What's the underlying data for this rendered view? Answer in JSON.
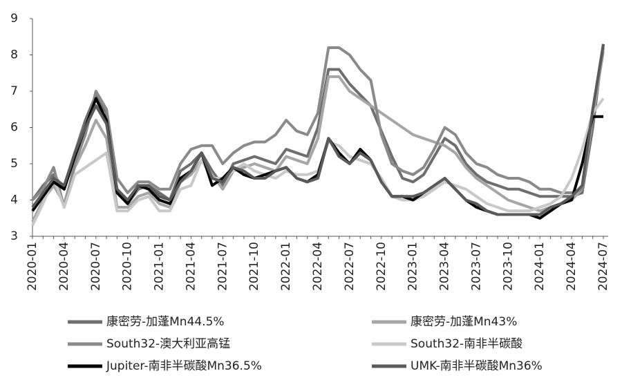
{
  "chart_data": {
    "type": "line",
    "categories": [
      "2020-01",
      null,
      null,
      "2020-04",
      null,
      null,
      "2020-07",
      null,
      null,
      "2020-10",
      null,
      null,
      "2021-01",
      null,
      null,
      "2021-04",
      null,
      null,
      "2021-07",
      null,
      null,
      "2021-10",
      null,
      null,
      "2022-01",
      null,
      null,
      "2022-04",
      null,
      null,
      "2022-07",
      null,
      null,
      "2022-10",
      null,
      null,
      "2023-01",
      null,
      null,
      "2023-04",
      null,
      null,
      "2023-07",
      null,
      null,
      "2023-10",
      null,
      null,
      "2024-01",
      null,
      null,
      "2024-04",
      null,
      null,
      "2024-07"
    ],
    "ylim": [
      3,
      9
    ],
    "yticks": [
      3,
      4,
      5,
      6,
      7,
      8,
      9
    ],
    "grid": false,
    "series": [
      {
        "name": "康密劳-加蓬Mn44.5%",
        "color": "#6e6e6e",
        "values": [
          4.0,
          4.4,
          4.7,
          4.3,
          5.3,
          6.2,
          6.9,
          6.4,
          4.2,
          3.9,
          4.3,
          4.4,
          4.2,
          4.0,
          4.8,
          5.0,
          5.3,
          4.8,
          4.4,
          5.0,
          5.1,
          5.2,
          5.1,
          5.0,
          5.4,
          5.3,
          5.2,
          6.0,
          7.6,
          7.6,
          7.2,
          6.9,
          6.6,
          5.9,
          5.2,
          4.6,
          4.5,
          4.7,
          5.2,
          5.7,
          5.5,
          5.0,
          4.7,
          4.5,
          4.4,
          4.3,
          4.3,
          4.2,
          4.1,
          4.1,
          4.1,
          4.1,
          4.2,
          6.0,
          8.3
        ]
      },
      {
        "name": "康密劳-加蓬Mn43%",
        "color": "#a6a6a6",
        "values": [
          3.4,
          4.0,
          4.4,
          3.9,
          4.9,
          5.5,
          6.2,
          5.7,
          3.8,
          3.8,
          4.1,
          4.2,
          3.9,
          3.8,
          4.5,
          4.7,
          5.1,
          4.7,
          4.3,
          4.8,
          4.9,
          5.0,
          4.9,
          4.8,
          5.2,
          5.1,
          5.0,
          5.7,
          7.4,
          7.4,
          7.0,
          6.8,
          6.6,
          6.4,
          6.2,
          6.0,
          5.8,
          5.7,
          5.6,
          5.5,
          5.3,
          4.9,
          4.6,
          4.4,
          4.2,
          4.0,
          3.9,
          3.8,
          3.7,
          3.8,
          3.9,
          4.0,
          4.3,
          6.3,
          8.1
        ]
      },
      {
        "name": "South32-澳大利亚高锰",
        "color": "#8a8a8a",
        "values": [
          4.0,
          4.3,
          4.9,
          3.8,
          5.0,
          5.8,
          7.0,
          6.5,
          4.6,
          4.2,
          4.5,
          4.5,
          4.3,
          4.3,
          5.0,
          5.4,
          5.5,
          5.5,
          5.0,
          5.3,
          5.5,
          5.6,
          5.6,
          5.8,
          6.2,
          5.9,
          5.8,
          6.4,
          8.2,
          8.2,
          8.0,
          7.6,
          7.3,
          5.8,
          5.0,
          4.8,
          4.7,
          4.9,
          5.4,
          6.0,
          5.8,
          5.3,
          5.0,
          4.9,
          4.7,
          4.6,
          4.6,
          4.5,
          4.3,
          4.3,
          4.2,
          4.2,
          4.3,
          6.5,
          8.2
        ]
      },
      {
        "name": "South32-南非半碳酸",
        "color": "#c8c8c8",
        "values": [
          3.3,
          3.9,
          4.6,
          3.8,
          4.7,
          4.9,
          5.1,
          5.3,
          3.7,
          3.7,
          4.0,
          4.1,
          3.7,
          3.7,
          4.3,
          4.4,
          5.1,
          4.6,
          4.6,
          4.8,
          5.0,
          4.8,
          4.7,
          4.6,
          4.8,
          4.7,
          4.7,
          4.8,
          5.6,
          5.5,
          5.2,
          5.1,
          5.0,
          4.6,
          4.1,
          4.0,
          4.0,
          4.1,
          4.3,
          4.5,
          4.4,
          4.3,
          4.1,
          3.9,
          3.8,
          3.7,
          3.7,
          3.7,
          3.8,
          3.9,
          4.1,
          4.6,
          5.4,
          6.4,
          6.8
        ]
      },
      {
        "name": "Jupiter-南非半碳酸Mn36.5%",
        "color": "#000000",
        "values": [
          3.7,
          4.1,
          4.5,
          4.3,
          5.2,
          6.0,
          6.8,
          6.2,
          4.2,
          3.9,
          4.4,
          4.3,
          4.0,
          3.9,
          4.6,
          4.8,
          5.3,
          4.4,
          4.6,
          4.9,
          4.7,
          4.6,
          4.7,
          4.8,
          4.9,
          4.6,
          4.5,
          4.7,
          5.7,
          5.3,
          5.0,
          5.4,
          5.1,
          4.5,
          4.1,
          4.1,
          4.0,
          4.2,
          4.4,
          4.6,
          4.3,
          4.0,
          3.8,
          3.7,
          3.6,
          3.6,
          3.6,
          3.6,
          3.5,
          3.7,
          3.9,
          4.0,
          5.0,
          6.3,
          6.3
        ]
      },
      {
        "name": "UMK-南非半碳酸Mn36%",
        "color": "#5a5a5a",
        "values": [
          3.8,
          4.2,
          4.6,
          4.4,
          5.3,
          6.0,
          6.6,
          6.1,
          4.3,
          4.0,
          4.4,
          4.4,
          4.1,
          4.0,
          4.5,
          4.8,
          5.3,
          4.6,
          4.5,
          4.9,
          4.8,
          4.6,
          4.6,
          4.8,
          4.9,
          4.6,
          4.5,
          4.6,
          5.7,
          5.2,
          5.0,
          5.3,
          5.1,
          4.5,
          4.1,
          4.1,
          4.1,
          4.2,
          4.4,
          4.6,
          4.3,
          4.0,
          3.9,
          3.7,
          3.6,
          3.6,
          3.6,
          3.6,
          3.6,
          3.8,
          3.9,
          4.1,
          4.4,
          6.5,
          8.3
        ]
      }
    ]
  }
}
